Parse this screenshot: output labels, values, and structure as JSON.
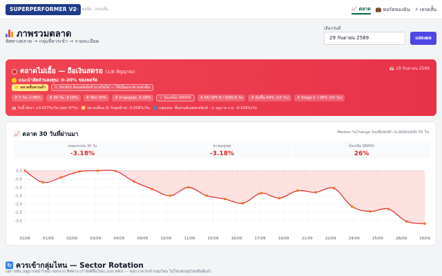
{
  "nav": {
    "brand": "SUPERPERFORMER V2",
    "subtitle": "ตลาด · พอร์ต · เทรดสั้น",
    "links": [
      {
        "icon": "📈",
        "label": "ตลาด",
        "active": true
      },
      {
        "icon": "💼",
        "label": "พอร์ตของฉัน",
        "active": false
      },
      {
        "icon": "⚡",
        "label": "เทรดสั้น",
        "active": false
      }
    ]
  },
  "header": {
    "title": "ภาพรวมตลาด",
    "subtitle": "ทิศทางตลาด → กลุ่มที่ควรเข้า → รายละเอียด",
    "date_label": "เลือกวันที่",
    "date_value": "29 กันยายน 2569",
    "show_button": "แสดงผล"
  },
  "alert": {
    "title": "ตลาดไม่เอื้อ — ถือเงินสดรอ",
    "title_note": "(1/8 สัญญาณ)",
    "date": "📅 29 กันยายน 2569",
    "recommendation": "แนะนำสัดส่วนลงทุน: 0–20% ของพอร์ต",
    "tag_badge": "👉 ตลาดลื่นควนต่ำ",
    "tag_verdict": "⚠ Verdict ย้อนหลังยังทำนายไม่ได้ — ใช้เป็นแนวทางเท่านั้น",
    "signals": [
      {
        "text": "✗ 7 วัน -1.86%",
        "outline": false
      },
      {
        "text": "✗ 30 วัน -3.18%",
        "outline": false
      },
      {
        "text": "✗ Win 35%",
        "outline": false
      },
      {
        "text": "✗ ท่าจุดสูงสุด -3.18%",
        "outline": false
      },
      {
        "text": "✓ หุ้นเหนือ SMA50",
        "outline": true
      },
      {
        "text": "✗ DD SPY 8 / QQQ 6 วัน",
        "outline": false
      },
      {
        "text": "✗ หุ้นขึ้น 44% (10 วัน)",
        "outline": false
      },
      {
        "text": "✗ Stage 2 ~38% (20 วัน)",
        "outline": false
      }
    ],
    "footer": "📅 วันนี้ อัตรา +0.027%/วัน (win 47%) · 🔁 ปลายเดือน (5 วันสุดท้าย) -0.008%/วัน · 🌐 กลุ่มเด่น: ขั้นส่วนอิเลคทรอนิกส์ · ⚠ ฤดูกาล ก.ย. -0.019%/วัน"
  },
  "chart_card": {
    "title": "ตลาด 30 วันที่ผ่านมา",
    "note": "Median %Change ของหุ้นทุกตัว สะสมย้อนหลัง 30 วัน",
    "stats": [
      {
        "label": "ผลตอบแทน 30 วัน",
        "value": "-3.18%"
      },
      {
        "label": "ห่างจุดสูงสุด",
        "value": "-3.18%"
      },
      {
        "label": "หุ้นเหนือ SMA50",
        "value": "26%"
      }
    ]
  },
  "chart_data": {
    "type": "area",
    "x": [
      "31/08",
      "01/09",
      "02/09",
      "03/09",
      "04/09",
      "05/09",
      "08/09",
      "09/09",
      "10/09",
      "11/09",
      "12/09",
      "15/09",
      "16/09",
      "17/09",
      "18/09",
      "19/09",
      "22/09",
      "23/09",
      "24/09",
      "25/09",
      "26/09",
      "28/09",
      "29/09"
    ],
    "xticks": [
      "31/08",
      "01/09",
      "02/09",
      "03/09",
      "04/09",
      "09/09",
      "10/09",
      "11/09",
      "15/09",
      "16/09",
      "17/09",
      "18/09",
      "21/09",
      "22/09",
      "24/09",
      "25/09",
      "28/09",
      "29/09"
    ],
    "values": [
      0.0,
      -0.7,
      -0.4,
      -0.05,
      0.0,
      -0.02,
      -0.65,
      -1.1,
      -1.5,
      -1.0,
      -1.5,
      -1.7,
      -1.95,
      -1.35,
      -1.65,
      -1.2,
      -1.3,
      -1.05,
      -2.15,
      -2.45,
      -2.3,
      -3.05,
      -3.18
    ],
    "yticks": [
      0.0,
      -0.5,
      -1.0,
      -1.5,
      -2.0,
      -2.5,
      -3.0
    ],
    "ylim": [
      -3.3,
      0.1
    ],
    "grid": true,
    "colors": {
      "line": "#dc2626",
      "fill": "#fecaca",
      "point": "#f97316",
      "zero": "#9ca3af"
    }
  },
  "section": {
    "icon": "🔄",
    "title": "ควรเข้ากลุ่มไหน — Sector Rotation",
    "subtitle": "แยก ขยัน (อยู่บวกหน้าไหน) ออกจาก ทิศทาง (กำลังดีขึ้นไหม) แบบ RRG — ตอบว่าควรเข้ากลุ่มไหน ไม่ใช่แค่กลุ่มไหนยืนดีแล้ว"
  }
}
